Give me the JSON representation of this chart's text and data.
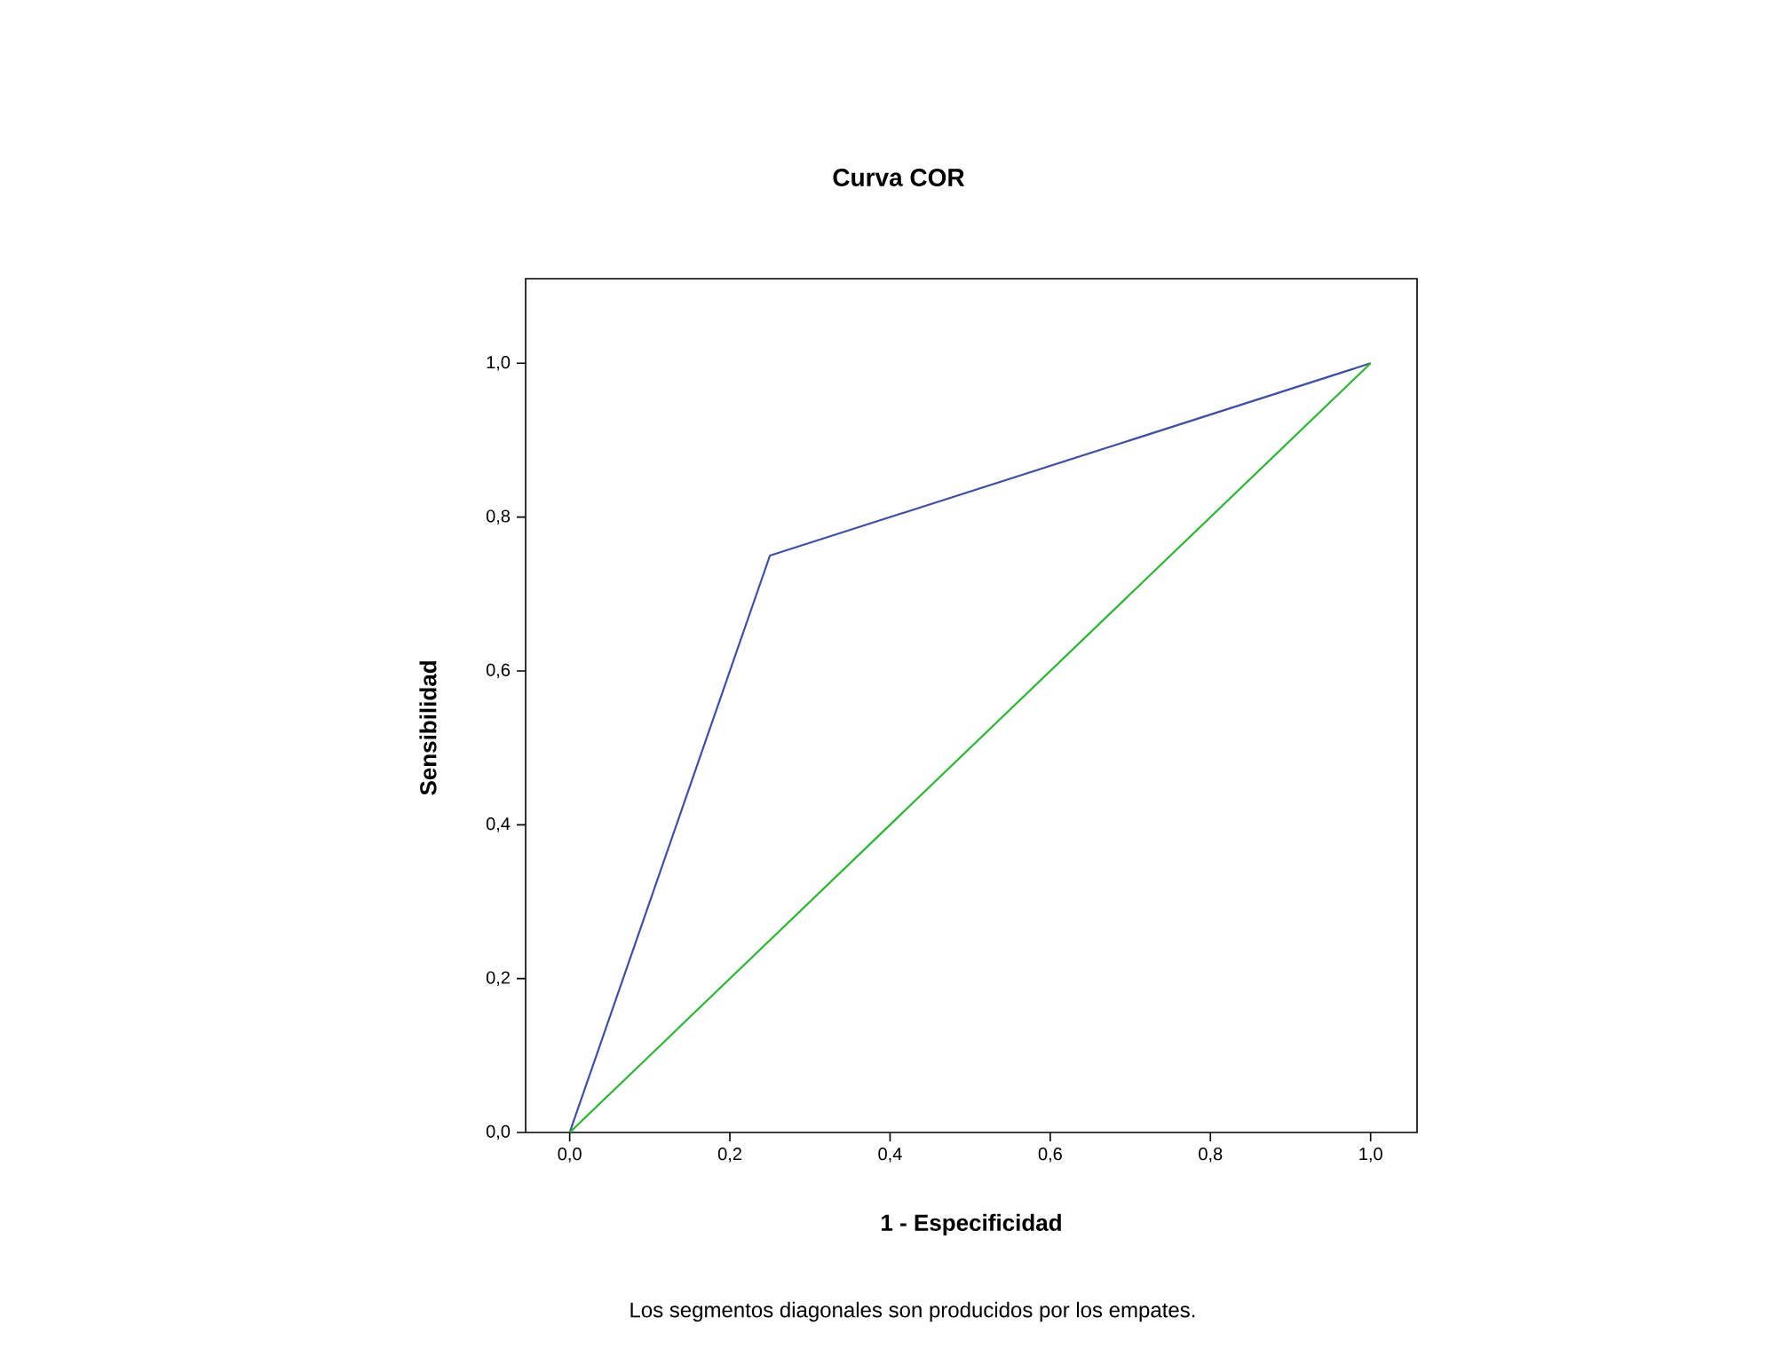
{
  "chart_data": {
    "type": "line",
    "title": "Curva COR",
    "xlabel": "1 - Especificidad",
    "ylabel": "Sensibilidad",
    "annotations": [
      "Los segmentos diagonales son producidos por los empates."
    ],
    "xlim": [
      -0.055,
      1.058
    ],
    "ylim": [
      0,
      1.11
    ],
    "xticks": [
      {
        "value": 0,
        "label": "0,0"
      },
      {
        "value": 0.2,
        "label": "0,2"
      },
      {
        "value": 0.4,
        "label": "0,4"
      },
      {
        "value": 0.6,
        "label": "0,6"
      },
      {
        "value": 0.8,
        "label": "0,8"
      },
      {
        "value": 1,
        "label": "1,0"
      }
    ],
    "yticks": [
      {
        "value": 0,
        "label": "0,0"
      },
      {
        "value": 0.2,
        "label": "0,2"
      },
      {
        "value": 0.4,
        "label": "0,4"
      },
      {
        "value": 0.6,
        "label": "0,6"
      },
      {
        "value": 0.8,
        "label": "0,8"
      },
      {
        "value": 1,
        "label": "1,0"
      }
    ],
    "series": [
      {
        "color": "#3f4fa8",
        "x": [
          0,
          0.25,
          1
        ],
        "values": [
          0,
          0.75,
          1
        ]
      },
      {
        "color": "#2bb534",
        "x": [
          0,
          1
        ],
        "values": [
          0,
          1
        ]
      }
    ],
    "marker": "none",
    "line_style": "solid",
    "grid": false
  }
}
